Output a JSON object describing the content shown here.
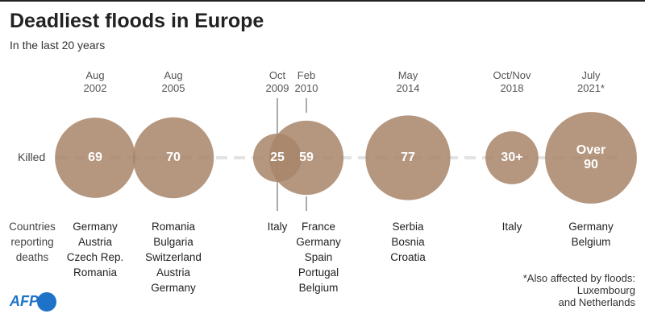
{
  "chart_data": {
    "type": "bubble",
    "title": "Deadliest floods in Europe",
    "subtitle": "In the last 20 years",
    "row_label": "Killed",
    "countries_label": "Countries\nreporting\ndeaths",
    "categories": [
      "Aug\n2002",
      "Aug\n2005",
      "Oct\n2009",
      "Feb\n2010",
      "May\n2014",
      "Oct/Nov\n2018",
      "July\n2021*"
    ],
    "values": [
      69,
      70,
      25,
      59,
      77,
      30,
      90
    ],
    "value_labels": [
      "69",
      "70",
      "25",
      "59",
      "77",
      "30+",
      "Over\n90"
    ],
    "countries": [
      [
        "Germany",
        "Austria",
        "Czech Rep.",
        "Romania"
      ],
      [
        "Romania",
        "Bulgaria",
        "Switzerland",
        "Austria",
        "Germany"
      ],
      [
        "Italy"
      ],
      [
        "France",
        "Germany",
        "Spain",
        "Portugal",
        "Belgium"
      ],
      [
        "Serbia",
        "Bosnia",
        "Croatia"
      ],
      [
        "Italy"
      ],
      [
        "Germany",
        "Belgium"
      ]
    ],
    "color": "#a8856a",
    "footnote": "*Also affected by floods:\nLuxembourg\nand Netherlands",
    "source": "AFP"
  }
}
